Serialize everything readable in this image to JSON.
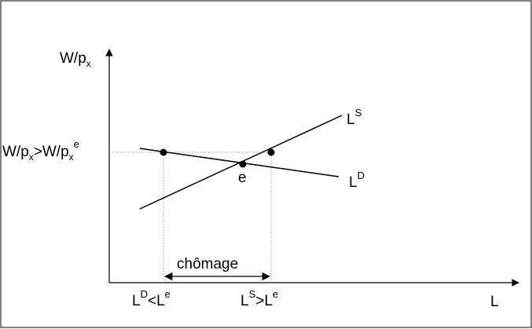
{
  "y_axis_label": {
    "main": "W/p",
    "sub": "x"
  },
  "x_axis_label": "L",
  "supply_curve_label": {
    "main": "L",
    "sup": "S"
  },
  "demand_curve_label": {
    "main": "L",
    "sup": "D"
  },
  "equilibrium_label": "e",
  "wage_level_label": {
    "p1": "W/p",
    "s1": "x",
    "p2": ">W/p",
    "s2": "x",
    "sup": "e"
  },
  "labor_demand_tick": {
    "a": "L",
    "a_sup": "D",
    "b": "<L",
    "b_sup": "e"
  },
  "labor_supply_tick": {
    "a": "L",
    "a_sup": "S",
    "b": ">L",
    "b_sup": "e"
  },
  "unemployment_label": "chômage",
  "colors": {
    "line": "#000000",
    "guide": "#999999",
    "frame": "#000000"
  }
}
